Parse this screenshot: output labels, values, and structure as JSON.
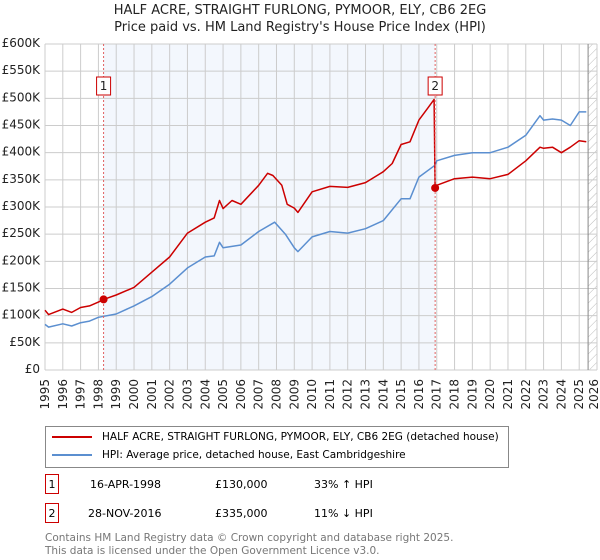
{
  "chart_data": {
    "type": "line",
    "title": "HALF ACRE, STRAIGHT FURLONG, PYMOOR, ELY, CB6 2EG",
    "subtitle": "Price paid vs. HM Land Registry's House Price Index (HPI)",
    "xlim": [
      1995,
      2026
    ],
    "ylim": [
      0,
      600000
    ],
    "x_ticks": [
      "1995",
      "1996",
      "1997",
      "1998",
      "1999",
      "2000",
      "2001",
      "2002",
      "2003",
      "2004",
      "2005",
      "2006",
      "2007",
      "2008",
      "2009",
      "2010",
      "2011",
      "2012",
      "2013",
      "2014",
      "2015",
      "2016",
      "2017",
      "2018",
      "2019",
      "2020",
      "2021",
      "2022",
      "2023",
      "2024",
      "2025",
      "2026"
    ],
    "y_ticks": [
      {
        "v": 0,
        "label": "£0"
      },
      {
        "v": 50000,
        "label": "£50K"
      },
      {
        "v": 100000,
        "label": "£100K"
      },
      {
        "v": 150000,
        "label": "£150K"
      },
      {
        "v": 200000,
        "label": "£200K"
      },
      {
        "v": 250000,
        "label": "£250K"
      },
      {
        "v": 300000,
        "label": "£300K"
      },
      {
        "v": 350000,
        "label": "£350K"
      },
      {
        "v": 400000,
        "label": "£400K"
      },
      {
        "v": 450000,
        "label": "£450K"
      },
      {
        "v": 500000,
        "label": "£500K"
      },
      {
        "v": 550000,
        "label": "£550K"
      },
      {
        "v": 600000,
        "label": "£600K"
      }
    ],
    "grid": true,
    "shaded_range": [
      1998.29,
      2016.91
    ],
    "hatched_from": 2025.5,
    "series": [
      {
        "name": "HALF ACRE, STRAIGHT FURLONG, PYMOOR, ELY, CB6 2EG (detached house)",
        "color": "#cc0000",
        "x": [
          1995,
          1995.2,
          1996,
          1996.5,
          1997,
          1997.5,
          1998,
          1998.29,
          1999,
          2000,
          2001,
          2002,
          2003,
          2004,
          2004.5,
          2004.8,
          2005,
          2005.5,
          2006,
          2007,
          2007.5,
          2007.8,
          2008.3,
          2008.6,
          2009,
          2009.2,
          2010,
          2011,
          2012,
          2013,
          2014,
          2014.5,
          2015,
          2015.5,
          2016,
          2016.5,
          2016.85,
          2016.91,
          2017,
          2018,
          2019,
          2020,
          2021,
          2022,
          2022.8,
          2023,
          2023.5,
          2024,
          2024.5,
          2025,
          2025.4
        ],
        "y": [
          110000,
          102000,
          112000,
          106000,
          115000,
          118000,
          125000,
          130000,
          138000,
          152000,
          180000,
          208000,
          252000,
          272000,
          280000,
          312000,
          297000,
          312000,
          305000,
          340000,
          362000,
          358000,
          340000,
          305000,
          298000,
          290000,
          328000,
          338000,
          336000,
          345000,
          365000,
          380000,
          415000,
          420000,
          460000,
          482000,
          498000,
          335000,
          340000,
          352000,
          355000,
          352000,
          360000,
          385000,
          410000,
          408000,
          410000,
          400000,
          410000,
          422000,
          420000
        ]
      },
      {
        "name": "HPI: Average price, detached house, East Cambridgeshire",
        "color": "#5b8fd0",
        "x": [
          1995,
          1995.2,
          1996,
          1996.5,
          1997,
          1997.5,
          1998,
          1999,
          2000,
          2001,
          2002,
          2003,
          2004,
          2004.5,
          2004.8,
          2005,
          2006,
          2007,
          2007.9,
          2008.5,
          2009,
          2009.2,
          2010,
          2011,
          2012,
          2013,
          2014,
          2015,
          2015.5,
          2016,
          2016.91,
          2017,
          2018,
          2019,
          2020,
          2021,
          2022,
          2022.8,
          2023,
          2023.5,
          2024,
          2024.5,
          2025,
          2025.4
        ],
        "y": [
          84000,
          79000,
          85000,
          81000,
          87000,
          90000,
          97000,
          103000,
          118000,
          135000,
          158000,
          188000,
          208000,
          210000,
          235000,
          225000,
          230000,
          255000,
          272000,
          250000,
          225000,
          218000,
          245000,
          255000,
          252000,
          260000,
          275000,
          315000,
          315000,
          355000,
          377000,
          385000,
          395000,
          400000,
          400000,
          410000,
          432000,
          468000,
          460000,
          462000,
          460000,
          450000,
          475000,
          475000
        ]
      }
    ],
    "annotations": [
      {
        "label": "1",
        "x": 1998.29,
        "y": 130000
      },
      {
        "label": "2",
        "x": 2016.91,
        "y": 335000
      }
    ]
  },
  "legend": {
    "red": "HALF ACRE, STRAIGHT FURLONG, PYMOOR, ELY, CB6 2EG (detached house)",
    "blue": "HPI: Average price, detached house, East Cambridgeshire"
  },
  "transactions": [
    {
      "num": "1",
      "date": "16-APR-1998",
      "price": "£130,000",
      "hpi": "33% ↑ HPI"
    },
    {
      "num": "2",
      "date": "28-NOV-2016",
      "price": "£335,000",
      "hpi": "11% ↓ HPI"
    }
  ],
  "footer": {
    "line1": "Contains HM Land Registry data © Crown copyright and database right 2025.",
    "line2": "This data is licensed under the Open Government Licence v3.0."
  }
}
